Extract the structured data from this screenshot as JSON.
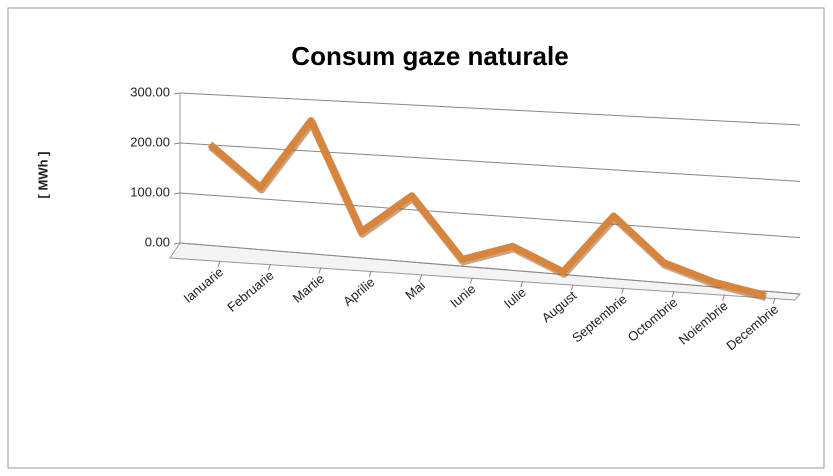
{
  "chart_data": {
    "type": "line",
    "title": "Consum gaze naturale",
    "y_label": "[ MWh ]",
    "categories": [
      "Ianuarie",
      "Februarie",
      "Martie",
      "Aprilie",
      "Mai",
      "Iunie",
      "Iulie",
      "August",
      "Septembrie",
      "Octombrie",
      "Noiembrie",
      "Decembrie"
    ],
    "series": [
      {
        "name": "Consum",
        "color": "#d9843b",
        "values": [
          217,
          138,
          275,
          66,
          142,
          28,
          60,
          20,
          130,
          51,
          23,
          7
        ]
      }
    ],
    "ylim": [
      0,
      300
    ],
    "yticks": [
      {
        "value": 0,
        "label": "0.00"
      },
      {
        "value": 100,
        "label": "100.00"
      },
      {
        "value": 200,
        "label": "200.00"
      },
      {
        "value": 300,
        "label": "300.00"
      }
    ],
    "grid": true
  }
}
